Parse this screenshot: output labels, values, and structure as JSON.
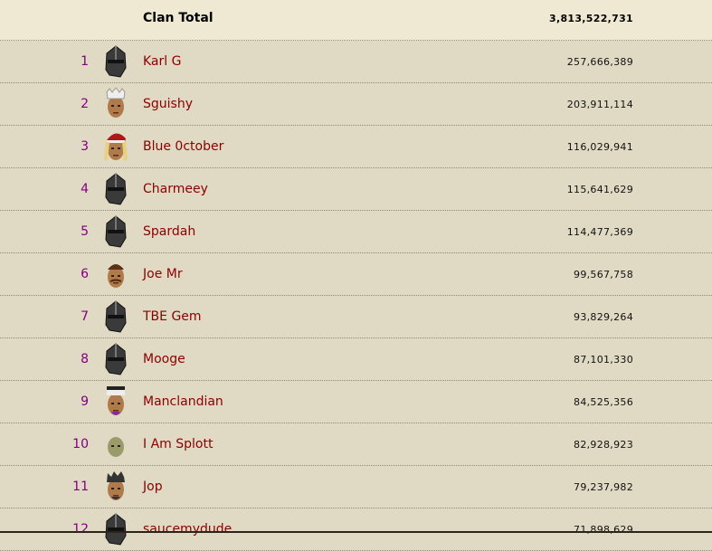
{
  "header": {
    "title": "Clan Total",
    "total": "3,813,522,731"
  },
  "rows": [
    {
      "rank": "1",
      "name": "Karl G",
      "xp": "257,666,389",
      "avatar": "helmet"
    },
    {
      "rank": "2",
      "name": "Sguishy",
      "xp": "203,911,114",
      "avatar": "crown-face"
    },
    {
      "rank": "3",
      "name": "Blue 0ctober",
      "xp": "116,029,941",
      "avatar": "santa-hat-face"
    },
    {
      "rank": "4",
      "name": "Charmeey",
      "xp": "115,641,629",
      "avatar": "helmet"
    },
    {
      "rank": "5",
      "name": "Spardah",
      "xp": "114,477,369",
      "avatar": "helmet"
    },
    {
      "rank": "6",
      "name": "Joe Mr",
      "xp": "99,567,758",
      "avatar": "mustache-face"
    },
    {
      "rank": "7",
      "name": "TBE Gem",
      "xp": "93,829,264",
      "avatar": "helmet"
    },
    {
      "rank": "8",
      "name": "Mooge",
      "xp": "87,101,330",
      "avatar": "helmet"
    },
    {
      "rank": "9",
      "name": "Manclandian",
      "xp": "84,525,356",
      "avatar": "headband-face"
    },
    {
      "rank": "10",
      "name": "I Am Splott",
      "xp": "82,928,923",
      "avatar": "bald-face"
    },
    {
      "rank": "11",
      "name": "Jop",
      "xp": "79,237,982",
      "avatar": "spiky-hair-face"
    },
    {
      "rank": "12",
      "name": "saucemydude",
      "xp": "71,898,629",
      "avatar": "helmet"
    }
  ]
}
